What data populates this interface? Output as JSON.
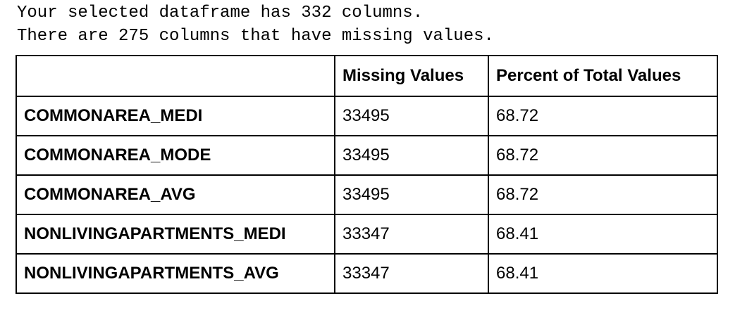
{
  "console": {
    "line1": "Your selected dataframe has 332 columns.",
    "line2": "There are 275 columns that have missing values."
  },
  "table": {
    "headers": [
      "",
      "Missing Values",
      "Percent of Total Values"
    ],
    "rows": [
      {
        "name": "COMMONAREA_MEDI",
        "missing": "33495",
        "percent": "68.72"
      },
      {
        "name": "COMMONAREA_MODE",
        "missing": "33495",
        "percent": "68.72"
      },
      {
        "name": "COMMONAREA_AVG",
        "missing": "33495",
        "percent": "68.72"
      },
      {
        "name": "NONLIVINGAPARTMENTS_MEDI",
        "missing": "33347",
        "percent": "68.41"
      },
      {
        "name": "NONLIVINGAPARTMENTS_AVG",
        "missing": "33347",
        "percent": "68.41"
      }
    ]
  }
}
